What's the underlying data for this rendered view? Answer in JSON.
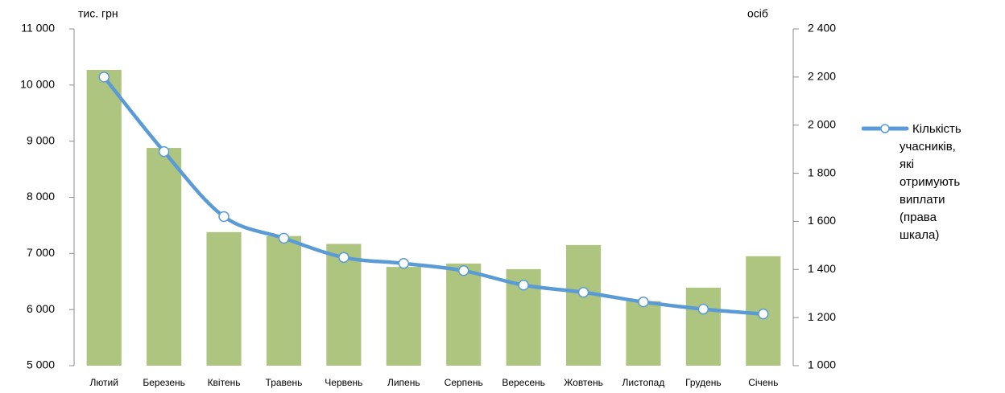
{
  "chart_data": {
    "type": "bar-line",
    "y_axis_label": "тис. грн",
    "y2_axis_label": "осіб",
    "categories": [
      "Лютий",
      "Березень",
      "Квітень",
      "Травень",
      "Червень",
      "Липень",
      "Серпень",
      "Вересень",
      "Жовтень",
      "Листопад",
      "Грудень",
      "Січень"
    ],
    "series": [
      {
        "type": "bar",
        "color": "#adc57f",
        "values": [
          10270,
          8880,
          7380,
          7310,
          7170,
          6760,
          6820,
          6720,
          7150,
          6150,
          6390,
          6950
        ]
      },
      {
        "type": "line",
        "name": "Кількість учасників, які отримують виплати (права шкала)",
        "color": "#5b9bd5",
        "axis": "y2",
        "values": [
          2200,
          1890,
          1620,
          1530,
          1450,
          1425,
          1395,
          1335,
          1305,
          1265,
          1235,
          1215
        ]
      }
    ],
    "ylim": [
      5000,
      11000
    ],
    "yticks": [
      {
        "value": 5000,
        "label": "5 000"
      },
      {
        "value": 6000,
        "label": "6 000"
      },
      {
        "value": 7000,
        "label": "7 000"
      },
      {
        "value": 8000,
        "label": "8 000"
      },
      {
        "value": 9000,
        "label": "9 000"
      },
      {
        "value": 10000,
        "label": "10 000"
      },
      {
        "value": 11000,
        "label": "11 000"
      }
    ],
    "y2lim": [
      1000,
      2400
    ],
    "y2ticks": [
      {
        "value": 1000,
        "label": "1 000"
      },
      {
        "value": 1200,
        "label": "1 200"
      },
      {
        "value": 1400,
        "label": "1 400"
      },
      {
        "value": 1600,
        "label": "1 600"
      },
      {
        "value": 1800,
        "label": "1 800"
      },
      {
        "value": 2000,
        "label": "2 000"
      },
      {
        "value": 2200,
        "label": "2 200"
      },
      {
        "value": 2400,
        "label": "2 400"
      }
    ],
    "legend": "right"
  }
}
